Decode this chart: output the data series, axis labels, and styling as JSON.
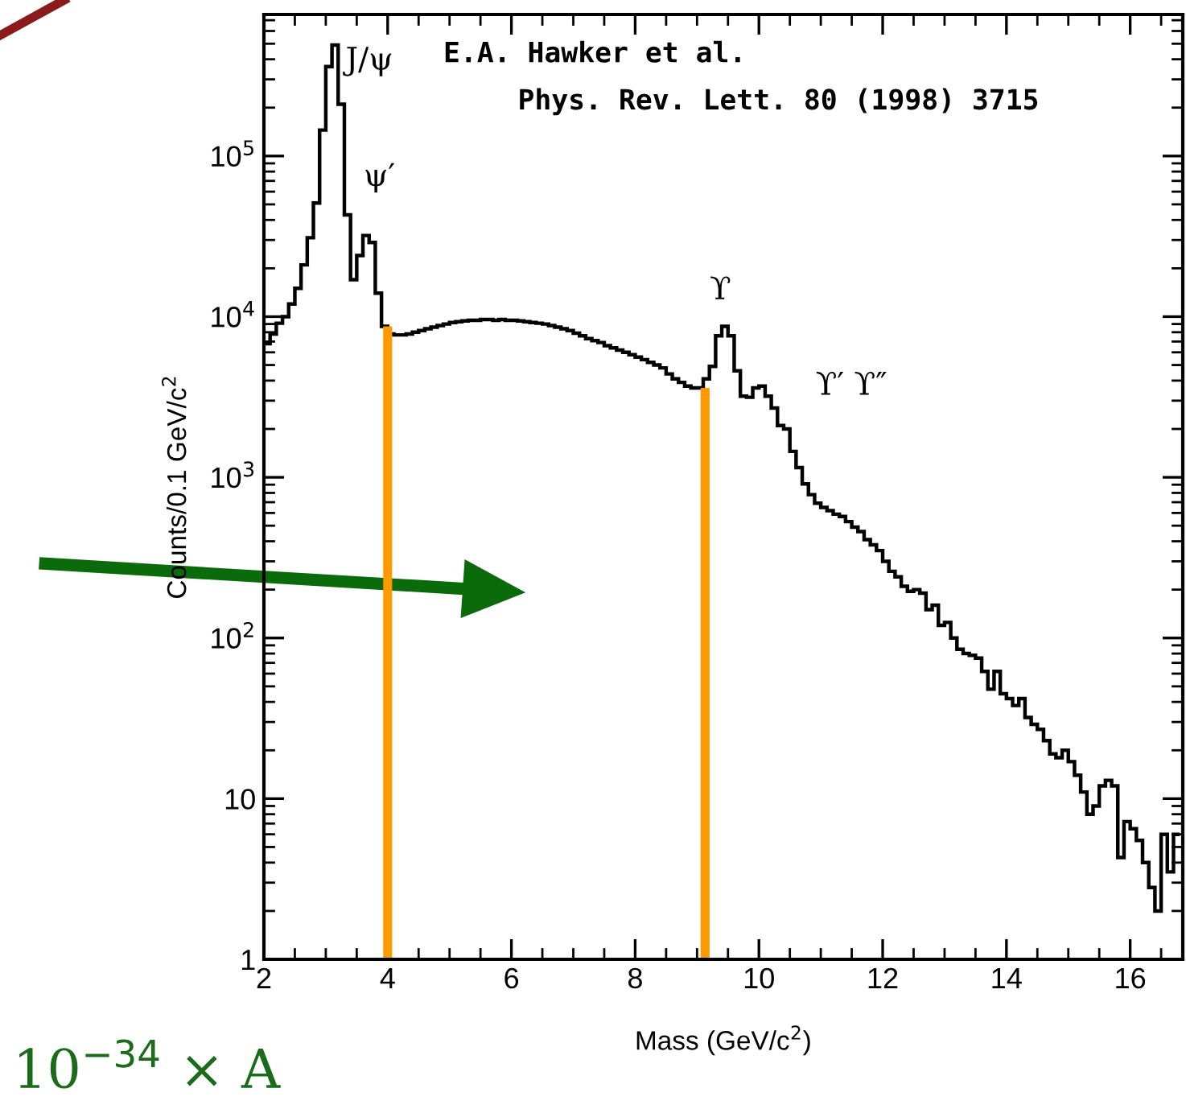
{
  "chart_data": {
    "type": "histogram",
    "xlabel": "Mass (GeV/c$^{2}$)",
    "ylabel": "Counts/0.1 GeV/c$^{2}$",
    "bins": [
      2.0,
      2.1,
      2.2,
      2.3,
      2.4,
      2.5,
      2.6,
      2.7,
      2.8,
      2.9,
      3.0,
      3.1,
      3.2,
      3.3,
      3.4,
      3.5,
      3.6,
      3.7,
      3.8,
      3.9,
      4.0,
      4.1,
      4.2,
      4.3,
      4.4,
      4.5,
      4.6,
      4.7,
      4.8,
      4.9,
      5.0,
      5.1,
      5.2,
      5.3,
      5.4,
      5.5,
      5.6,
      5.7,
      5.8,
      5.9,
      6.0,
      6.1,
      6.2,
      6.3,
      6.4,
      6.5,
      6.6,
      6.7,
      6.8,
      6.9,
      7.0,
      7.1,
      7.2,
      7.3,
      7.4,
      7.5,
      7.6,
      7.7,
      7.8,
      7.9,
      8.0,
      8.1,
      8.2,
      8.3,
      8.4,
      8.5,
      8.6,
      8.7,
      8.8,
      8.9,
      9.0,
      9.1,
      9.2,
      9.3,
      9.4,
      9.5,
      9.6,
      9.7,
      9.8,
      9.9,
      10.0,
      10.1,
      10.2,
      10.3,
      10.4,
      10.5,
      10.6,
      10.7,
      10.8,
      10.9,
      11.0,
      11.1,
      11.2,
      11.3,
      11.4,
      11.5,
      11.6,
      11.7,
      11.8,
      11.9,
      12.0,
      12.1,
      12.2,
      12.3,
      12.4,
      12.5,
      12.6,
      12.7,
      12.8,
      12.9,
      13.0,
      13.1,
      13.2,
      13.3,
      13.4,
      13.5,
      13.6,
      13.7,
      13.8,
      13.9,
      14.0,
      14.1,
      14.2,
      14.3,
      14.4,
      14.5,
      14.6,
      14.7,
      14.8,
      14.9,
      15.0,
      15.1,
      15.2,
      15.3,
      15.4,
      15.5,
      15.6,
      15.7,
      15.8,
      15.9,
      16.0,
      16.1,
      16.2,
      16.3,
      16.4,
      16.5,
      16.6,
      16.7,
      16.8
    ],
    "values": [
      6800,
      7800,
      9100,
      10000,
      12000,
      15000,
      21000,
      31000,
      51000,
      145000,
      360000,
      490000,
      210000,
      43000,
      17000,
      24000,
      32000,
      29000,
      14000,
      8700,
      7800,
      7700,
      7700,
      7800,
      8000,
      8200,
      8400,
      8600,
      8800,
      9000,
      9200,
      9300,
      9400,
      9500,
      9500,
      9600,
      9600,
      9500,
      9600,
      9500,
      9500,
      9400,
      9300,
      9200,
      9100,
      9000,
      8800,
      8600,
      8400,
      8200,
      7900,
      7600,
      7300,
      7100,
      6900,
      6600,
      6400,
      6200,
      6000,
      5800,
      5600,
      5400,
      5200,
      5000,
      4800,
      4400,
      4100,
      3900,
      3700,
      3600,
      3600,
      4100,
      4900,
      7600,
      8700,
      7600,
      4600,
      3200,
      3150,
      3600,
      3700,
      3200,
      2700,
      2100,
      2000,
      1450,
      1150,
      910,
      780,
      690,
      650,
      620,
      590,
      570,
      530,
      490,
      460,
      410,
      380,
      350,
      300,
      260,
      240,
      210,
      195,
      200,
      190,
      150,
      160,
      120,
      125,
      100,
      85,
      80,
      78,
      75,
      62,
      48,
      62,
      45,
      42,
      38,
      42,
      32,
      29,
      27,
      23,
      19,
      18,
      20,
      17,
      14,
      11,
      8,
      9,
      12,
      13,
      12,
      4.3,
      7.2,
      6.5,
      5.5,
      4,
      2.8,
      2,
      6,
      3.5,
      6
    ],
    "color": "#000000",
    "log": "y",
    "xlim": [
      2,
      16.85
    ],
    "xticks": [
      2,
      4,
      6,
      8,
      10,
      12,
      14,
      16
    ],
    "ylim": [
      1,
      760000
    ],
    "yticks": [
      1,
      10,
      {
        "value": 100,
        "label": "10$^{2}$"
      },
      {
        "value": 1000,
        "label": "10$^{3}$"
      },
      {
        "value": 10000,
        "label": "10$^{4}$"
      },
      {
        "value": 100000,
        "label": "10$^{5}$"
      }
    ],
    "grid": false,
    "ref_lines": [
      {
        "axis": "x",
        "value": 4.0,
        "color": "#ff9900"
      },
      {
        "axis": "x",
        "value": 9.13,
        "color": "#ff9900"
      }
    ],
    "annotations": [
      "E.A. Hawker et al.",
      "Phys. Rev. Lett. 80 (1998) 3715",
      "10$^{−34}$ × A",
      {
        "text": "J/ψ",
        "x": 3.32,
        "y": 390000
      },
      {
        "text": "ψ′",
        "x": 3.65,
        "y": 32000
      },
      {
        "text": "ϒ",
        "x": 9.45,
        "y": 8700
      },
      {
        "text": "ϒ′ ϒ″",
        "x": 10.05,
        "y": 3700
      }
    ]
  }
}
